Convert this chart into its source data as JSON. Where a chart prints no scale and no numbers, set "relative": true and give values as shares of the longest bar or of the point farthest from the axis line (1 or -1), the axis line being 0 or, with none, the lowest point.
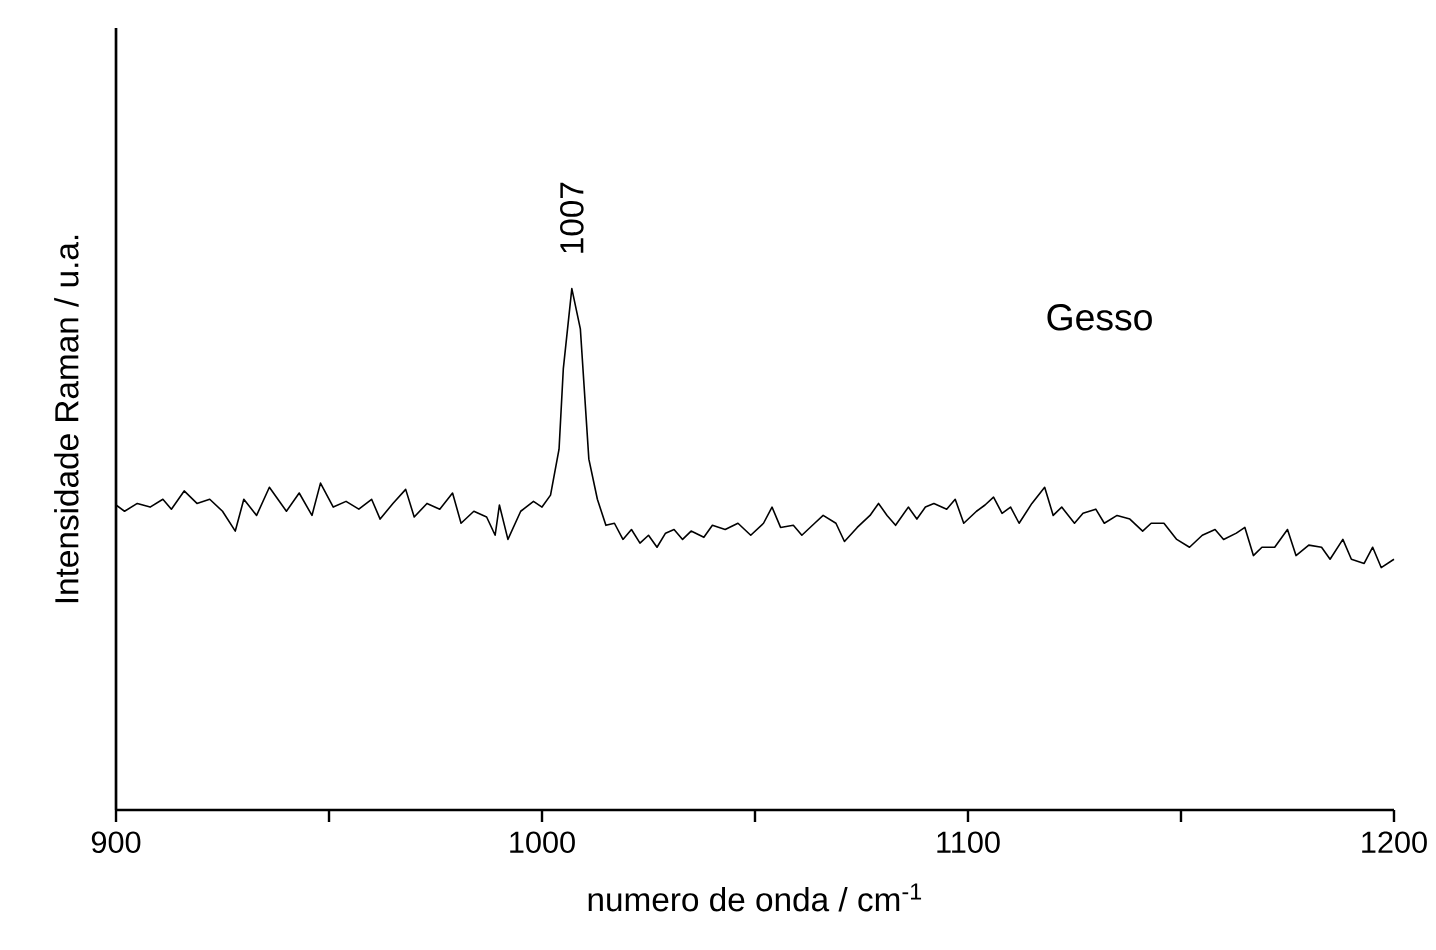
{
  "chart_data": {
    "type": "line",
    "relative": true,
    "xlabel": "numero de onda / cm$^{-1}$",
    "ylabel": "Intensidade Raman / u.a.",
    "xlim": [
      900,
      1200
    ],
    "xticks": [
      900,
      {
        "value": 950,
        "label": null
      },
      1000,
      {
        "value": 1050,
        "label": null
      },
      1100,
      {
        "value": 1150,
        "label": null
      },
      1200
    ],
    "annotations": [
      {
        "text": "1007",
        "x": 1007,
        "y": 1
      },
      "Gesso"
    ],
    "marker": "none",
    "line_style": "solid",
    "series": [
      {
        "color": "#000000",
        "x": [
          900,
          902,
          905,
          908,
          911,
          913,
          916,
          919,
          922,
          925,
          928,
          930,
          933,
          936,
          938,
          940,
          943,
          946,
          948,
          951,
          954,
          957,
          960,
          962,
          965,
          968,
          970,
          973,
          976,
          979,
          981,
          984,
          987,
          989,
          990,
          992,
          995,
          998,
          1000,
          1002,
          1004,
          1005,
          1007,
          1009,
          1011,
          1013,
          1015,
          1017,
          1019,
          1021,
          1023,
          1025,
          1027,
          1029,
          1031,
          1033,
          1035,
          1038,
          1040,
          1043,
          1046,
          1049,
          1052,
          1054,
          1056,
          1059,
          1061,
          1064,
          1066,
          1069,
          1071,
          1074,
          1077,
          1079,
          1081,
          1083,
          1086,
          1088,
          1090,
          1092,
          1095,
          1097,
          1099,
          1102,
          1104,
          1106,
          1108,
          1110,
          1112,
          1115,
          1118,
          1120,
          1122,
          1125,
          1127,
          1130,
          1132,
          1135,
          1138,
          1141,
          1143,
          1146,
          1149,
          1152,
          1155,
          1158,
          1160,
          1163,
          1165,
          1167,
          1169,
          1172,
          1175,
          1177,
          1180,
          1183,
          1185,
          1188,
          1190,
          1193,
          1195,
          1197,
          1200
        ],
        "values": [
          0.585,
          0.573,
          0.588,
          0.581,
          0.596,
          0.577,
          0.612,
          0.588,
          0.596,
          0.573,
          0.535,
          0.596,
          0.565,
          0.619,
          0.596,
          0.573,
          0.608,
          0.565,
          0.627,
          0.581,
          0.592,
          0.577,
          0.596,
          0.558,
          0.588,
          0.615,
          0.562,
          0.588,
          0.577,
          0.608,
          0.55,
          0.573,
          0.562,
          0.527,
          0.585,
          0.519,
          0.573,
          0.592,
          0.581,
          0.604,
          0.692,
          0.846,
          1,
          0.923,
          0.673,
          0.596,
          0.546,
          0.55,
          0.519,
          0.538,
          0.512,
          0.527,
          0.504,
          0.531,
          0.538,
          0.519,
          0.535,
          0.523,
          0.546,
          0.538,
          0.55,
          0.527,
          0.55,
          0.581,
          0.542,
          0.546,
          0.527,
          0.55,
          0.565,
          0.55,
          0.515,
          0.542,
          0.565,
          0.588,
          0.565,
          0.546,
          0.581,
          0.558,
          0.581,
          0.588,
          0.577,
          0.596,
          0.55,
          0.573,
          0.585,
          0.6,
          0.569,
          0.581,
          0.55,
          0.588,
          0.619,
          0.565,
          0.581,
          0.55,
          0.569,
          0.577,
          0.55,
          0.565,
          0.558,
          0.535,
          0.55,
          0.55,
          0.519,
          0.504,
          0.527,
          0.538,
          0.519,
          0.531,
          0.542,
          0.488,
          0.504,
          0.504,
          0.538,
          0.488,
          0.508,
          0.504,
          0.481,
          0.519,
          0.481,
          0.473,
          0.504,
          0.465,
          0.481
        ]
      }
    ]
  }
}
